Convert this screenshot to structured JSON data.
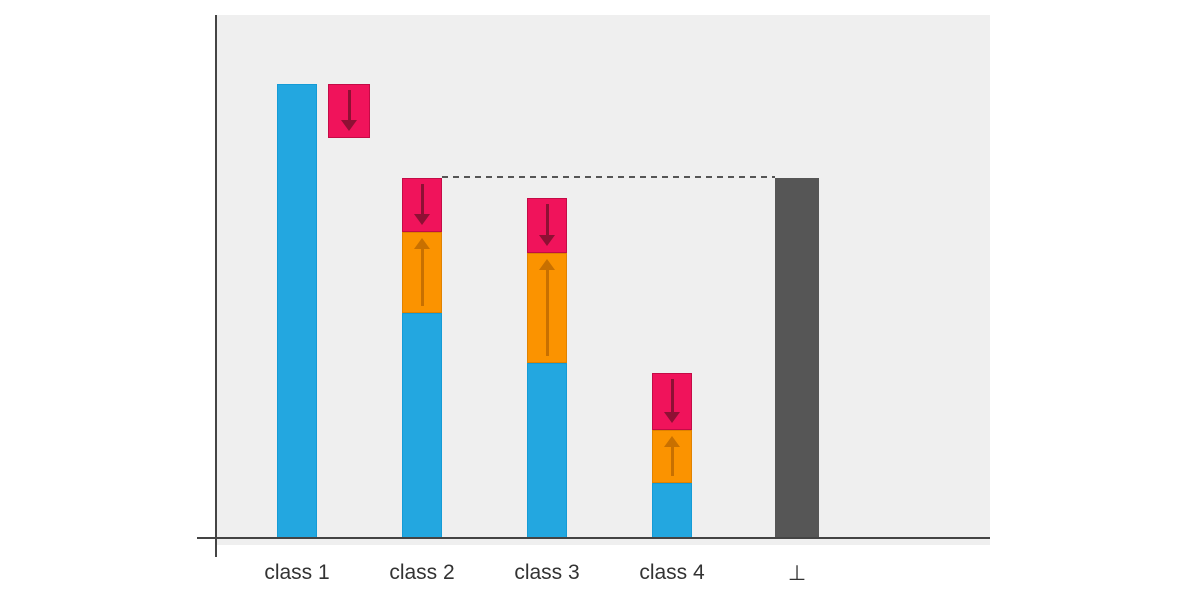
{
  "figure": {
    "page_background_color": "#ffffff",
    "plot_background_color": "#efefef",
    "axis_color": "#444444",
    "dashed_line_color": "#555555",
    "label_color": "#333333"
  },
  "colors": {
    "score": "#23a7e0",
    "score_border": "#149bd6",
    "increment": "#fb9300",
    "increment_border": "#e08200",
    "increment_arrow": "#c87000",
    "decrement": "#f0135b",
    "decrement_border": "#c40b46",
    "decrement_arrow": "#8e1034",
    "reject": "#565656",
    "reject_border": "#565656"
  },
  "chart_data": {
    "type": "bar",
    "title": "",
    "xlabel": "",
    "ylabel": "",
    "categories": [
      "class 1",
      "class 2",
      "class 3",
      "class 4",
      "⊥"
    ],
    "value_units": "relative height (class 1 bar = 1.0)",
    "ylim": [
      0,
      1.15
    ],
    "grid": false,
    "legend": null,
    "bars": [
      {
        "category": "class 1",
        "role": "class-score",
        "segments": [
          {
            "kind": "score",
            "value": 1.0
          }
        ],
        "side_box": {
          "kind": "decrement",
          "value": 0.119,
          "arrow": "down"
        }
      },
      {
        "category": "class 2",
        "role": "class-score",
        "segments": [
          {
            "kind": "score",
            "value": 0.496
          },
          {
            "kind": "increment",
            "value": 0.178,
            "arrow": "up"
          },
          {
            "kind": "decrement",
            "value": 0.119,
            "arrow": "down"
          }
        ]
      },
      {
        "category": "class 3",
        "role": "class-score",
        "segments": [
          {
            "kind": "score",
            "value": 0.385
          },
          {
            "kind": "increment",
            "value": 0.242,
            "arrow": "up"
          },
          {
            "kind": "decrement",
            "value": 0.121,
            "arrow": "down"
          }
        ]
      },
      {
        "category": "class 4",
        "role": "class-score",
        "segments": [
          {
            "kind": "score",
            "value": 0.121
          },
          {
            "kind": "increment",
            "value": 0.117,
            "arrow": "up"
          },
          {
            "kind": "decrement",
            "value": 0.126,
            "arrow": "down"
          }
        ]
      },
      {
        "category": "⊥",
        "role": "reject-threshold",
        "segments": [
          {
            "kind": "reject",
            "value": 0.793
          }
        ]
      }
    ],
    "dashed_line": {
      "y_value": 0.793,
      "from_bar_index": 1,
      "to_bar_index": 4,
      "style": "dashed"
    }
  }
}
